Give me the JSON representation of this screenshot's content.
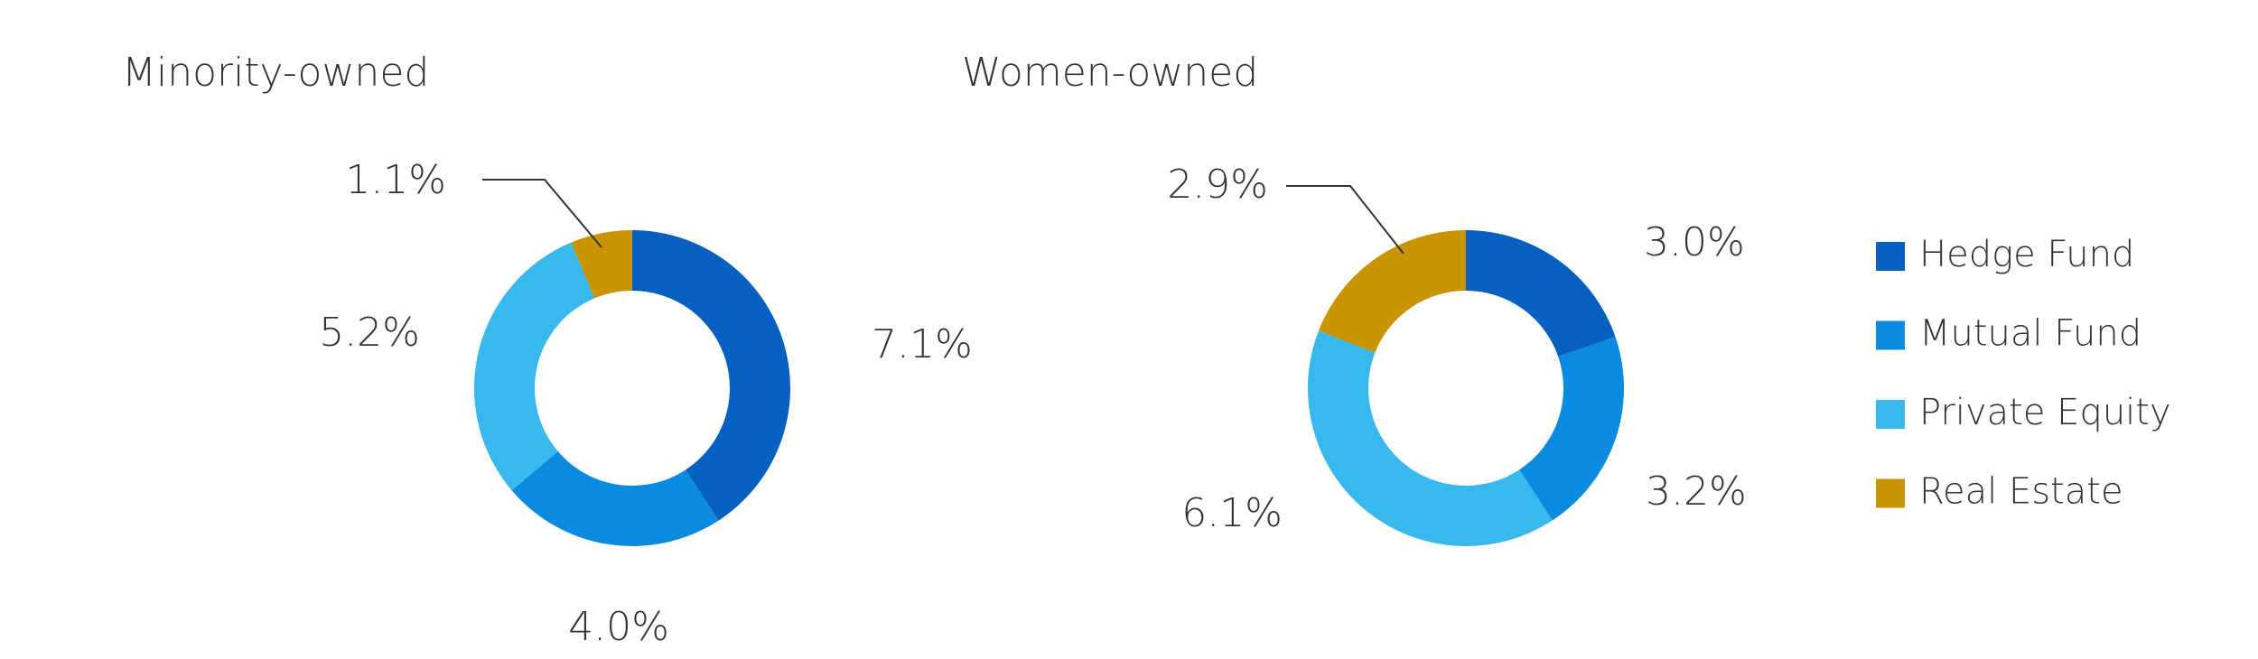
{
  "chart_data": [
    {
      "type": "donut",
      "title": "Minority-owned",
      "categories": [
        "Hedge Fund",
        "Mutual Fund",
        "Private Equity",
        "Real Estate"
      ],
      "values": [
        7.1,
        4.0,
        5.2,
        1.1
      ],
      "value_labels": [
        "7.1%",
        "4.0%",
        "5.2%",
        "1.1%"
      ],
      "colors": [
        "#0560c0",
        "#0a8be0",
        "#38b8ec",
        "#c89500"
      ]
    },
    {
      "type": "donut",
      "title": "Women-owned",
      "categories": [
        "Hedge Fund",
        "Mutual Fund",
        "Private Equity",
        "Real Estate"
      ],
      "values": [
        3.0,
        3.2,
        6.1,
        2.9
      ],
      "value_labels": [
        "3.0%",
        "3.2%",
        "6.1%",
        "2.9%"
      ],
      "colors": [
        "#0560c0",
        "#0a8be0",
        "#38b8ec",
        "#c89500"
      ],
      "legend": "right"
    }
  ]
}
